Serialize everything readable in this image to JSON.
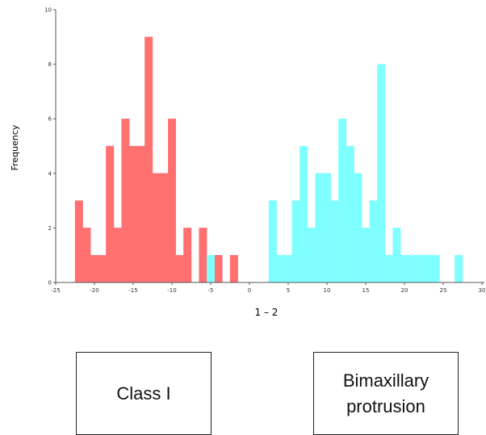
{
  "chart_data": {
    "type": "bar",
    "title": "",
    "xlabel": "1 – 2",
    "ylabel": "Frequency",
    "xlim": [
      -25,
      30
    ],
    "ylim": [
      0,
      10
    ],
    "bin_width": 1,
    "x_ticks": [
      "-25",
      "-20",
      "-15",
      "-10",
      "-5",
      "0",
      "5",
      "10",
      "15",
      "20",
      "25",
      "30"
    ],
    "y_ticks": [
      "0",
      "2",
      "4",
      "6",
      "8",
      "10"
    ],
    "grid": false,
    "series": [
      {
        "color": "#ff7070",
        "bins": [
          {
            "x": -22,
            "count": 3
          },
          {
            "x": -21,
            "count": 2
          },
          {
            "x": -20,
            "count": 1
          },
          {
            "x": -19,
            "count": 1
          },
          {
            "x": -18,
            "count": 5
          },
          {
            "x": -17,
            "count": 2
          },
          {
            "x": -16,
            "count": 6
          },
          {
            "x": -15,
            "count": 5
          },
          {
            "x": -14,
            "count": 5
          },
          {
            "x": -13,
            "count": 9
          },
          {
            "x": -12,
            "count": 4
          },
          {
            "x": -11,
            "count": 4
          },
          {
            "x": -10,
            "count": 6
          },
          {
            "x": -9,
            "count": 1
          },
          {
            "x": -8,
            "count": 2
          },
          {
            "x": -6,
            "count": 2
          },
          {
            "x": -4,
            "count": 1
          },
          {
            "x": -2,
            "count": 1
          }
        ]
      },
      {
        "color": "#7fffff",
        "bins": [
          {
            "x": -5,
            "count": 1
          },
          {
            "x": 3,
            "count": 3
          },
          {
            "x": 4,
            "count": 1
          },
          {
            "x": 5,
            "count": 1
          },
          {
            "x": 6,
            "count": 3
          },
          {
            "x": 7,
            "count": 5
          },
          {
            "x": 8,
            "count": 2
          },
          {
            "x": 9,
            "count": 4
          },
          {
            "x": 10,
            "count": 4
          },
          {
            "x": 11,
            "count": 3
          },
          {
            "x": 12,
            "count": 6
          },
          {
            "x": 13,
            "count": 5
          },
          {
            "x": 14,
            "count": 4
          },
          {
            "x": 15,
            "count": 2
          },
          {
            "x": 16,
            "count": 3
          },
          {
            "x": 17,
            "count": 8
          },
          {
            "x": 18,
            "count": 1
          },
          {
            "x": 19,
            "count": 2
          },
          {
            "x": 20,
            "count": 1
          },
          {
            "x": 21,
            "count": 1
          },
          {
            "x": 22,
            "count": 1
          },
          {
            "x": 23,
            "count": 1
          },
          {
            "x": 24,
            "count": 1
          },
          {
            "x": 27,
            "count": 1
          }
        ]
      }
    ]
  },
  "labels": {
    "class1": "Class I",
    "bimax_line1": "Bimaxillary",
    "bimax_line2": "protrusion"
  }
}
